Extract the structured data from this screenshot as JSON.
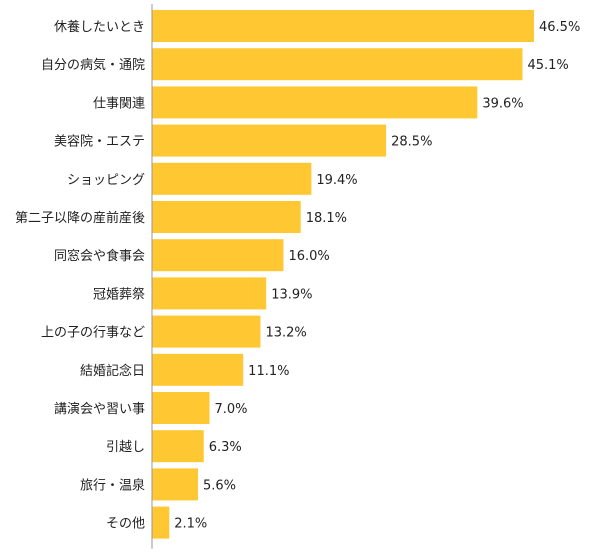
{
  "chart_data": {
    "type": "bar",
    "orientation": "horizontal",
    "categories": [
      "休養したいとき",
      "自分の病気・通院",
      "仕事関連",
      "美容院・エステ",
      "ショッピング",
      "第二子以降の産前産後",
      "同窓会や食事会",
      "冠婚葬祭",
      "上の子の行事など",
      "結婚記念日",
      "講演会や習い事",
      "引越し",
      "旅行・温泉",
      "その他"
    ],
    "values": [
      46.5,
      45.1,
      39.6,
      28.5,
      19.4,
      18.1,
      16.0,
      13.9,
      13.2,
      11.1,
      7.0,
      6.3,
      5.6,
      2.1
    ],
    "value_labels": [
      "46.5%",
      "45.1%",
      "39.6%",
      "28.5%",
      "19.4%",
      "18.1%",
      "16.0%",
      "13.9%",
      "13.2%",
      "11.1%",
      "7.0%",
      "6.3%",
      "5.6%",
      "2.1%"
    ],
    "xlim": [
      0,
      50
    ],
    "grid": false,
    "bar_color": "#FFC832",
    "axis_color": "#999999"
  }
}
